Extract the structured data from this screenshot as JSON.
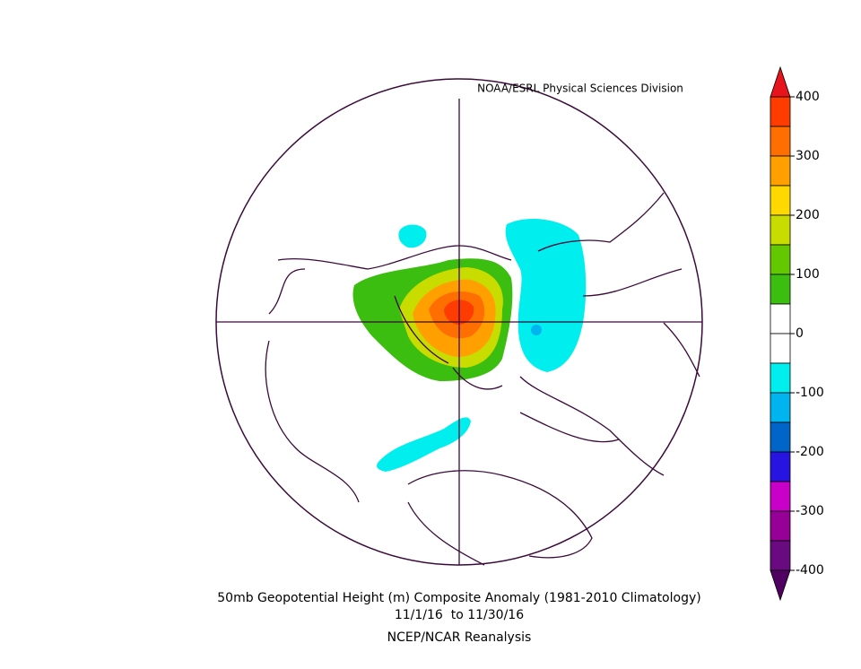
{
  "credit": "NOAA/ESRL Physical Sciences Division",
  "title": "50mb Geopotential Height (m) Composite Anomaly (1981-2010 Climatology)",
  "date_range": "11/1/16  to 11/30/16",
  "source": "NCEP/NCAR Reanalysis",
  "colorbar": {
    "ticks": [
      400,
      300,
      200,
      100,
      0,
      -100,
      -200,
      -300,
      -400
    ],
    "over_color": "#e8141c",
    "colors": [
      "#ff3c00",
      "#ff6e00",
      "#ffa000",
      "#ffd800",
      "#c8dc00",
      "#64c800",
      "#3cbe10",
      "#ffffff",
      "#ffffff",
      "#00eeee",
      "#00b4f0",
      "#0064c8",
      "#2814e0",
      "#c800c8",
      "#960096",
      "#6a0a80"
    ],
    "under_color": "#500060"
  }
}
